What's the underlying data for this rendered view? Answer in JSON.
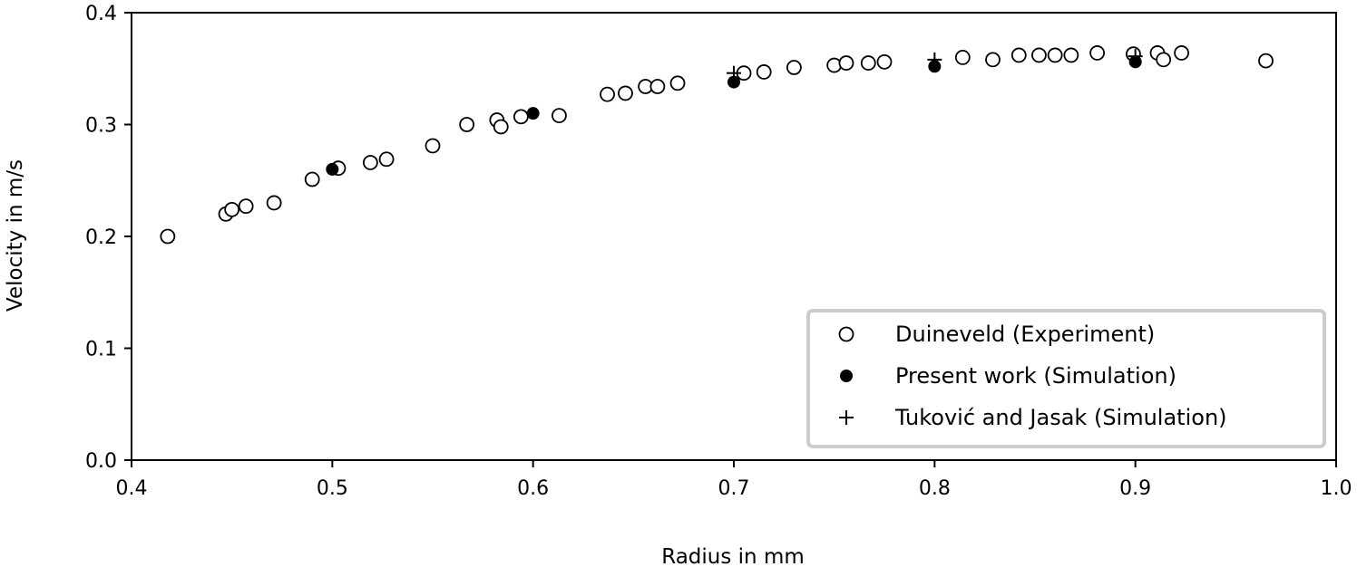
{
  "chart_data": {
    "type": "scatter",
    "title": "",
    "xlabel": "Radius in mm",
    "ylabel": "Velocity in m/s",
    "xlim": [
      0.4,
      1.0
    ],
    "ylim": [
      0.0,
      0.4
    ],
    "xticks": [
      "0.4",
      "0.5",
      "0.6",
      "0.7",
      "0.8",
      "0.9",
      "1.0"
    ],
    "yticks": [
      "0.0",
      "0.1",
      "0.2",
      "0.3",
      "0.4"
    ],
    "grid": false,
    "legend_position": "bottom-right",
    "series": [
      {
        "name": "Duineveld (Experiment)",
        "marker": "open-circle",
        "color": "#000000",
        "points": [
          [
            0.418,
            0.2
          ],
          [
            0.447,
            0.22
          ],
          [
            0.45,
            0.224
          ],
          [
            0.457,
            0.227
          ],
          [
            0.471,
            0.23
          ],
          [
            0.49,
            0.251
          ],
          [
            0.503,
            0.261
          ],
          [
            0.519,
            0.266
          ],
          [
            0.527,
            0.269
          ],
          [
            0.55,
            0.281
          ],
          [
            0.567,
            0.3
          ],
          [
            0.582,
            0.304
          ],
          [
            0.584,
            0.298
          ],
          [
            0.594,
            0.307
          ],
          [
            0.613,
            0.308
          ],
          [
            0.637,
            0.327
          ],
          [
            0.646,
            0.328
          ],
          [
            0.656,
            0.334
          ],
          [
            0.662,
            0.334
          ],
          [
            0.672,
            0.337
          ],
          [
            0.705,
            0.346
          ],
          [
            0.715,
            0.347
          ],
          [
            0.73,
            0.351
          ],
          [
            0.75,
            0.353
          ],
          [
            0.756,
            0.355
          ],
          [
            0.767,
            0.355
          ],
          [
            0.775,
            0.356
          ],
          [
            0.814,
            0.36
          ],
          [
            0.829,
            0.358
          ],
          [
            0.842,
            0.362
          ],
          [
            0.852,
            0.362
          ],
          [
            0.86,
            0.362
          ],
          [
            0.868,
            0.362
          ],
          [
            0.881,
            0.364
          ],
          [
            0.899,
            0.363
          ],
          [
            0.911,
            0.364
          ],
          [
            0.914,
            0.358
          ],
          [
            0.923,
            0.364
          ],
          [
            0.965,
            0.357
          ]
        ]
      },
      {
        "name": "Present work (Simulation)",
        "marker": "filled-circle",
        "color": "#000000",
        "points": [
          [
            0.5,
            0.26
          ],
          [
            0.6,
            0.31
          ],
          [
            0.7,
            0.338
          ],
          [
            0.8,
            0.352
          ],
          [
            0.9,
            0.356
          ]
        ]
      },
      {
        "name": "Tuković and Jasak (Simulation)",
        "marker": "plus",
        "color": "#000000",
        "points": [
          [
            0.7,
            0.346
          ],
          [
            0.8,
            0.358
          ],
          [
            0.9,
            0.361
          ]
        ]
      }
    ]
  }
}
